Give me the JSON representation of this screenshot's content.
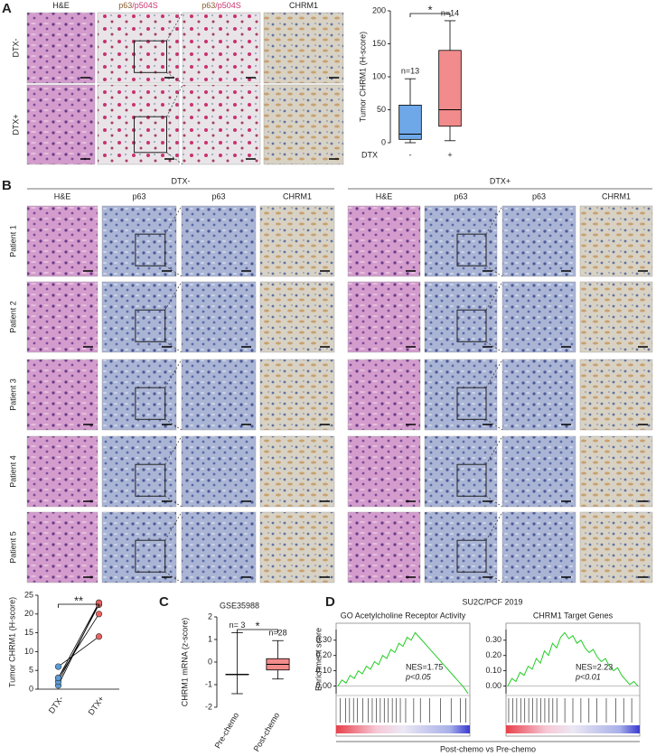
{
  "panel_labels": [
    "A",
    "B",
    "C",
    "D"
  ],
  "panel_a": {
    "columns": [
      [
        "H&E"
      ],
      [
        "p63",
        "/p504S"
      ],
      [
        "p63",
        "/p504S"
      ],
      [
        "CHRM1"
      ]
    ],
    "rows": [
      "DTX-",
      "DTX+"
    ]
  },
  "panel_b": {
    "groups": [
      "DTX-",
      "DTX+"
    ],
    "columns": [
      "H&E",
      "p63",
      "p63",
      "CHRM1"
    ],
    "rows": [
      "Patient 1",
      "Patient 2",
      "Patient 3",
      "Patient 4",
      "Patient 5"
    ]
  },
  "panel_d": {
    "title": "SU2C/PCF 2019",
    "ylabel": "Enrichment score",
    "xlabel": "Post-chemo vs Pre-chemo"
  },
  "chart_data": [
    {
      "type": "box",
      "ylabel": "Tumor CHRM1 (H-score)",
      "xlabel": "DTX",
      "categories": [
        "-",
        "+"
      ],
      "boxes": [
        {
          "min": 0,
          "q1": 5,
          "median": 13,
          "q3": 57,
          "max": 97,
          "color": "#6fa8e8",
          "n_label": "n=13"
        },
        {
          "min": 3,
          "q1": 25,
          "median": 50,
          "q3": 140,
          "max": 185,
          "color": "#f28b8b",
          "n_label": "n=14"
        }
      ],
      "significance": "*",
      "ylim": [
        0,
        200
      ],
      "yticks": [
        0,
        50,
        100,
        150,
        200
      ]
    },
    {
      "type": "paired",
      "ylabel": "Tumor CHRM1 (H-score)",
      "categories": [
        "DTX-",
        "DTX+"
      ],
      "pairs": [
        [
          1,
          23
        ],
        [
          2,
          22.5
        ],
        [
          3,
          20
        ],
        [
          6,
          14
        ],
        [
          3,
          23
        ]
      ],
      "colors": [
        "#5b9bd5",
        "#e8625f"
      ],
      "significance": "**",
      "ylim": [
        0,
        25
      ],
      "yticks": [
        0,
        5,
        10,
        15,
        20,
        25
      ]
    },
    {
      "type": "box",
      "title": "GSE35988",
      "ylabel": "CHRM1 mRNA (z-score)",
      "categories": [
        "Pre-chemo",
        "Post-chemo"
      ],
      "boxes": [
        {
          "min": -1.4,
          "q1": -0.56,
          "median": -0.55,
          "q3": -0.54,
          "max": 1.3,
          "color": "#f28b8b",
          "n_label": "n= 3"
        },
        {
          "min": -0.75,
          "q1": -0.35,
          "median": -0.1,
          "q3": 0.15,
          "max": 0.95,
          "color": "#f28b8b",
          "n_label": "n=28"
        }
      ],
      "significance": "*",
      "ylim": [
        -2,
        2
      ],
      "yticks": [
        -2,
        -1,
        0,
        1,
        2
      ]
    },
    {
      "type": "gsea",
      "title": "GO Acetylcholine Receptor Activity",
      "nes_label": "NES=1.75",
      "p_label": "p<0.05",
      "color": "#22cc22",
      "values": [
        0,
        0.04,
        0.02,
        0.07,
        0.05,
        0.1,
        0.08,
        0.13,
        0.11,
        0.16,
        0.14,
        0.2,
        0.18,
        0.24,
        0.22,
        0.28,
        0.26,
        0.32,
        0.3,
        0.35,
        0.32,
        0.29,
        0.26,
        0.23,
        0.2,
        0.17,
        0.14,
        0.11,
        0.08,
        0.05,
        0.02,
        -0.01,
        -0.05
      ],
      "hits": [
        3,
        7,
        10,
        13,
        16,
        20,
        24,
        27,
        30,
        33,
        36,
        39,
        42,
        45,
        48,
        52,
        58,
        63,
        70,
        78,
        86,
        93,
        97
      ],
      "ylim": [
        -0.05,
        0.37
      ],
      "yticks": [
        {
          "value": 0,
          "label": "0.00"
        },
        {
          "value": 0.1,
          "label": "0.10"
        },
        {
          "value": 0.2,
          "label": "0.20"
        },
        {
          "value": 0.3,
          "label": "0.30"
        }
      ]
    },
    {
      "type": "gsea",
      "title": "CHRM1 Target Genes",
      "nes_label": "NES=2.23",
      "p_label": "p<0.01",
      "color": "#22cc22",
      "values": [
        0,
        0.05,
        0.03,
        0.09,
        0.07,
        0.13,
        0.11,
        0.18,
        0.15,
        0.23,
        0.2,
        0.28,
        0.25,
        0.32,
        0.35,
        0.31,
        0.33,
        0.28,
        0.3,
        0.25,
        0.22,
        0.24,
        0.19,
        0.16,
        0.18,
        0.13,
        0.1,
        0.12,
        0.07,
        0.04,
        0.01,
        0.03,
        0.0
      ],
      "hits": [
        2,
        5,
        8,
        11,
        14,
        17,
        20,
        23,
        26,
        29,
        32,
        35,
        38,
        44,
        50,
        56,
        62,
        68,
        75,
        82,
        88,
        94
      ],
      "ylim": [
        -0.05,
        0.37
      ],
      "yticks": [
        {
          "value": 0,
          "label": "0.00"
        },
        {
          "value": 0.1,
          "label": "0.10"
        },
        {
          "value": 0.2,
          "label": "0.20"
        },
        {
          "value": 0.3,
          "label": "0.30"
        }
      ]
    }
  ]
}
